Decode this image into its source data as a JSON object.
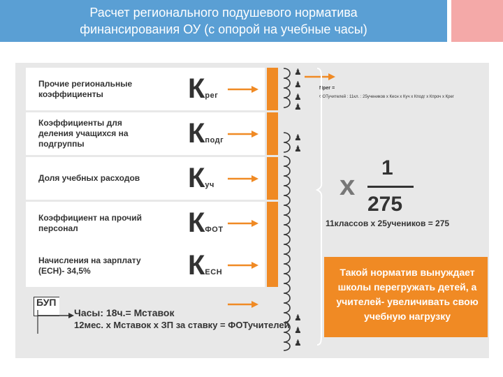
{
  "header": {
    "title_line1": "Расчет регионального подушевого норматива",
    "title_line2": "финансирования ОУ (с опорой на учебные часы)"
  },
  "rows": [
    {
      "label": "Прочие региональные коэффициенты",
      "coef": "К",
      "sub": "рег"
    },
    {
      "label": "Коэффициенты для деления учащихся на подгруппы",
      "coef": "К",
      "sub": "подг"
    },
    {
      "label": "Доля учебных расходов",
      "coef": "К",
      "sub": "уч"
    },
    {
      "label": "Коэффициент на прочий персонал",
      "coef": "К",
      "sub": "ФОТ"
    },
    {
      "label": "Начисления на зарплату (ЕСН)- 34,5%",
      "coef": "К",
      "sub": "ЕСН"
    }
  ],
  "bup": {
    "label": "БУП",
    "formula_line1": "Часы: 18ч.= Мставок",
    "formula_line2": "12мес. х Мставок х ЗП за ставку = ФОТучителей"
  },
  "right": {
    "nreg_label": "Nрег =",
    "nreg_formula": "ФОТучителей : 11кл. : 25учеников х Кесн х Куч х Кподг х Кпроч х Крег",
    "times": "х",
    "numerator": "1",
    "denominator": "275",
    "calc": "11классов х 25учеников = 275",
    "note": "Такой норматив вынуждает школы перегружать детей, а учителей- увеличивать свою учебную нагрузку"
  },
  "colors": {
    "header_bg": "#5a9fd4",
    "accent": "#f08a24",
    "corner": "#f4a9a8",
    "panel_bg": "#e8e8e8"
  }
}
